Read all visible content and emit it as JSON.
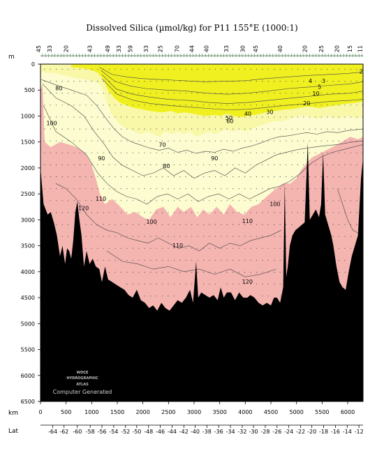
{
  "chart_data": {
    "type": "section",
    "title": "Dissolved Silica (µmol/kg) for P11 155°E (1000:1)",
    "depth_unit": "m",
    "distance_unit": "km",
    "lat_label": "Lat",
    "xlim_km": [
      0,
      6300
    ],
    "ylim_m": [
      0,
      6500
    ],
    "km_ticks": [
      0,
      500,
      1000,
      1500,
      2000,
      2500,
      3000,
      3500,
      4000,
      4500,
      5000,
      5500,
      6000
    ],
    "depth_ticks": [
      0,
      500,
      1000,
      1500,
      2000,
      2500,
      3000,
      3500,
      4000,
      4500,
      5000,
      5500,
      6000,
      6500
    ],
    "lat_ticks": [
      {
        "km": 240,
        "label": "-64"
      },
      {
        "km": 460,
        "label": "-62"
      },
      {
        "km": 720,
        "label": "-60"
      },
      {
        "km": 970,
        "label": "-58"
      },
      {
        "km": 1200,
        "label": "-56"
      },
      {
        "km": 1430,
        "label": "-54"
      },
      {
        "km": 1660,
        "label": "-52"
      },
      {
        "km": 1880,
        "label": "-50"
      },
      {
        "km": 2110,
        "label": "-48"
      },
      {
        "km": 2340,
        "label": "-46"
      },
      {
        "km": 2570,
        "label": "-44"
      },
      {
        "km": 2800,
        "label": "-42"
      },
      {
        "km": 3020,
        "label": "-40"
      },
      {
        "km": 3250,
        "label": "-38"
      },
      {
        "km": 3480,
        "label": "-36"
      },
      {
        "km": 3710,
        "label": "-34"
      },
      {
        "km": 3940,
        "label": "-32"
      },
      {
        "km": 4160,
        "label": "-30"
      },
      {
        "km": 4390,
        "label": "-28"
      },
      {
        "km": 4620,
        "label": "-26"
      },
      {
        "km": 4850,
        "label": "-24"
      },
      {
        "km": 5080,
        "label": "-22"
      },
      {
        "km": 5300,
        "label": "-20"
      },
      {
        "km": 5530,
        "label": "-18"
      },
      {
        "km": 5760,
        "label": "-16"
      },
      {
        "km": 5990,
        "label": "-14"
      },
      {
        "km": 6220,
        "label": "-12"
      }
    ],
    "station_labels": [
      {
        "km": 0,
        "label": "45"
      },
      {
        "km": 220,
        "label": "33"
      },
      {
        "km": 540,
        "label": "20"
      },
      {
        "km": 1000,
        "label": "43"
      },
      {
        "km": 1350,
        "label": "49"
      },
      {
        "km": 1570,
        "label": "33"
      },
      {
        "km": 1790,
        "label": "59"
      },
      {
        "km": 2100,
        "label": "33"
      },
      {
        "km": 2380,
        "label": "25"
      },
      {
        "km": 2710,
        "label": "70"
      },
      {
        "km": 2990,
        "label": "44"
      },
      {
        "km": 3280,
        "label": "40"
      },
      {
        "km": 3670,
        "label": "33"
      },
      {
        "km": 3990,
        "label": "30"
      },
      {
        "km": 4240,
        "label": "45"
      },
      {
        "km": 4720,
        "label": "40"
      },
      {
        "km": 5200,
        "label": "20"
      },
      {
        "km": 5520,
        "label": "25"
      },
      {
        "km": 5830,
        "label": "20"
      },
      {
        "km": 6080,
        "label": "15"
      },
      {
        "km": 6280,
        "label": "11"
      }
    ],
    "fill_bands": [
      {
        "range": "< 40",
        "color": "#f0f020"
      },
      {
        "range": "40 - 70",
        "color": "#f8f8a8"
      },
      {
        "range": "70 - 110",
        "color": "#fcfcd0"
      },
      {
        "range": "> 110",
        "color": "#f4b4b0"
      },
      {
        "range": "bottom",
        "color": "#000000"
      }
    ],
    "contour_labels": [
      {
        "km": 6260,
        "depth": 150,
        "label": "2"
      },
      {
        "km": 5270,
        "depth": 330,
        "label": "4"
      },
      {
        "km": 5530,
        "depth": 330,
        "label": "3"
      },
      {
        "km": 5450,
        "depth": 440,
        "label": "5"
      },
      {
        "km": 5380,
        "depth": 570,
        "label": "10"
      },
      {
        "km": 5200,
        "depth": 760,
        "label": "20"
      },
      {
        "km": 4480,
        "depth": 930,
        "label": "30"
      },
      {
        "km": 4050,
        "depth": 960,
        "label": "40"
      },
      {
        "km": 3680,
        "depth": 1040,
        "label": "50"
      },
      {
        "km": 3700,
        "depth": 1100,
        "label": "60"
      },
      {
        "km": 360,
        "depth": 470,
        "label": "80"
      },
      {
        "km": 220,
        "depth": 1140,
        "label": "100"
      },
      {
        "km": 2380,
        "depth": 1560,
        "label": "70"
      },
      {
        "km": 1190,
        "depth": 1820,
        "label": "90"
      },
      {
        "km": 2460,
        "depth": 1970,
        "label": "80"
      },
      {
        "km": 3400,
        "depth": 1820,
        "label": "90"
      },
      {
        "km": 840,
        "depth": 2780,
        "label": "120"
      },
      {
        "km": 1180,
        "depth": 2600,
        "label": "110"
      },
      {
        "km": 2170,
        "depth": 3040,
        "label": "100"
      },
      {
        "km": 4580,
        "depth": 2700,
        "label": "100"
      },
      {
        "km": 4040,
        "depth": 3030,
        "label": "110"
      },
      {
        "km": 2680,
        "depth": 3500,
        "label": "110"
      },
      {
        "km": 4040,
        "depth": 4200,
        "label": "120"
      }
    ],
    "watermark_lines": [
      "WOCE",
      "HYDROGRAPHIC",
      "ATLAS",
      "Computer Generated"
    ]
  }
}
